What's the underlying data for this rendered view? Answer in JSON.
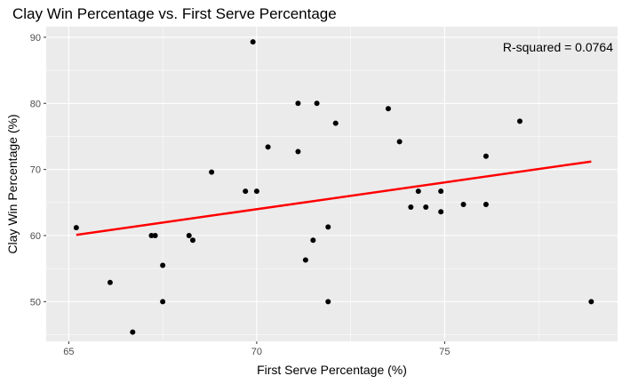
{
  "chart_data": {
    "type": "scatter",
    "title": "Clay Win Percentage vs. First Serve Percentage",
    "xlabel": "First Serve Percentage (%)",
    "ylabel": "Clay Win Percentage (%)",
    "xlim": [
      64.4,
      79.6
    ],
    "ylim": [
      44.0,
      91.6
    ],
    "x_ticks": [
      65,
      70,
      75
    ],
    "y_ticks": [
      50,
      60,
      70,
      80,
      90
    ],
    "x_tick_labels": [
      "65",
      "70",
      "75"
    ],
    "y_tick_labels": [
      "50",
      "60",
      "70",
      "80",
      "90"
    ],
    "grid": true,
    "annotation": "R-squared = 0.0764",
    "points": [
      {
        "x": 65.2,
        "y": 61.2
      },
      {
        "x": 66.1,
        "y": 52.9
      },
      {
        "x": 66.7,
        "y": 45.4
      },
      {
        "x": 67.2,
        "y": 60.0
      },
      {
        "x": 67.3,
        "y": 60.0
      },
      {
        "x": 67.5,
        "y": 55.5
      },
      {
        "x": 67.5,
        "y": 50.0
      },
      {
        "x": 68.2,
        "y": 60.0
      },
      {
        "x": 68.3,
        "y": 59.3
      },
      {
        "x": 68.8,
        "y": 69.6
      },
      {
        "x": 69.7,
        "y": 66.7
      },
      {
        "x": 69.9,
        "y": 89.3
      },
      {
        "x": 70.0,
        "y": 66.7
      },
      {
        "x": 70.3,
        "y": 73.4
      },
      {
        "x": 71.1,
        "y": 80.0
      },
      {
        "x": 71.1,
        "y": 72.7
      },
      {
        "x": 71.3,
        "y": 56.3
      },
      {
        "x": 71.5,
        "y": 59.3
      },
      {
        "x": 71.6,
        "y": 80.0
      },
      {
        "x": 71.9,
        "y": 61.3
      },
      {
        "x": 71.9,
        "y": 50.0
      },
      {
        "x": 72.1,
        "y": 77.0
      },
      {
        "x": 73.5,
        "y": 79.2
      },
      {
        "x": 73.8,
        "y": 74.2
      },
      {
        "x": 74.1,
        "y": 64.3
      },
      {
        "x": 74.3,
        "y": 66.7
      },
      {
        "x": 74.5,
        "y": 64.3
      },
      {
        "x": 74.9,
        "y": 66.7
      },
      {
        "x": 74.9,
        "y": 63.6
      },
      {
        "x": 75.5,
        "y": 64.7
      },
      {
        "x": 76.1,
        "y": 72.0
      },
      {
        "x": 76.1,
        "y": 64.7
      },
      {
        "x": 77.0,
        "y": 77.3
      },
      {
        "x": 78.9,
        "y": 50.0
      }
    ],
    "fit_line": {
      "x": [
        65.2,
        78.9
      ],
      "y": [
        60.1,
        71.2
      ],
      "color": "#ff0000"
    },
    "colors": {
      "panel": "#ebebeb",
      "grid": "#ffffff",
      "point": "#000000"
    }
  }
}
